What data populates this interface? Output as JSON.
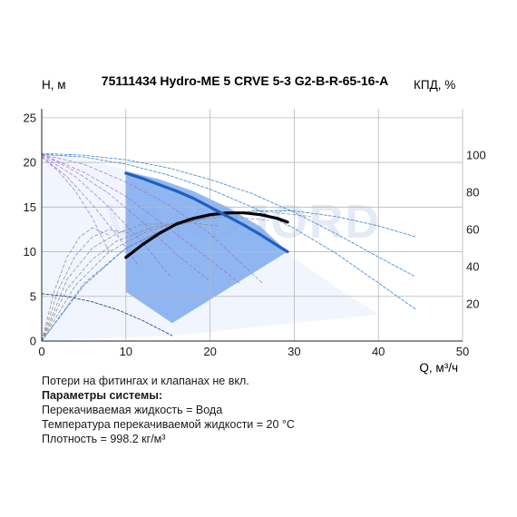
{
  "chart_data": {
    "type": "line",
    "title": "75111434 Hydro-ME 5 CRVE 5-3 G2-B-R-65-16-A",
    "ylabel": "H, м",
    "y2label": "КПД, %",
    "xlabel": "Q, м³/ч",
    "watermark": "VANDJORD",
    "xlim": [
      0,
      50
    ],
    "ylim": [
      0,
      26
    ],
    "y2lim": [
      0,
      125
    ],
    "grid": true,
    "x_ticks": [
      "0",
      "10",
      "20",
      "30",
      "40",
      "50"
    ],
    "y_ticks": [
      "0",
      "5",
      "10",
      "15",
      "20",
      "25"
    ],
    "y2_ticks": [
      "20",
      "40",
      "60",
      "80",
      "100"
    ],
    "colors": {
      "duty_head": "#1f5fbf",
      "duty_eff": "#000000",
      "operating_area": "#6fa0ec",
      "system_area": "#e7eefb",
      "head_curves": "#a16ad6",
      "eff_curves": "#8a8a8a",
      "envelope": "#4a8fd6"
    },
    "series": [
      {
        "name": "",
        "role": "duty_head",
        "axis": "H",
        "x": [
          10,
          12,
          14,
          16,
          18,
          20,
          22,
          24,
          26,
          28,
          29.2
        ],
        "y": [
          18.8,
          18.2,
          17.5,
          16.8,
          16.0,
          15.0,
          14.0,
          13.0,
          11.9,
          10.7,
          10.0
        ]
      },
      {
        "name": "",
        "role": "duty_efficiency",
        "axis": "eta",
        "x": [
          10,
          12,
          14,
          16,
          18,
          20,
          22,
          24,
          26,
          28,
          29.2
        ],
        "y": [
          45,
          52,
          58,
          63,
          66,
          68,
          69,
          69,
          68,
          66,
          64
        ]
      },
      {
        "name": "",
        "role": "max_head",
        "axis": "H",
        "x": [
          0,
          5,
          10,
          15,
          20,
          25,
          30,
          35,
          40,
          44.5
        ],
        "y": [
          20.9,
          20.6,
          19.8,
          18.6,
          17.0,
          15.0,
          12.6,
          9.8,
          6.5,
          3.5
        ]
      },
      {
        "name": "",
        "role": "max_head_upper",
        "axis": "H",
        "x": [
          0,
          5,
          10,
          15,
          20,
          25,
          30,
          35,
          40,
          44.2
        ],
        "y": [
          21.0,
          20.8,
          20.3,
          19.4,
          18.1,
          16.5,
          14.4,
          12.0,
          9.4,
          7.3
        ]
      },
      {
        "name": "",
        "role": "max_efficiency",
        "axis": "eta",
        "x": [
          0,
          5,
          10,
          15,
          20,
          25,
          30,
          35,
          40,
          44.5
        ],
        "y": [
          0,
          30,
          50,
          61,
          67,
          70,
          70,
          67,
          62,
          56
        ]
      },
      {
        "name": "",
        "role": "min_head",
        "axis": "H",
        "x": [
          0,
          3,
          6,
          9,
          12,
          15.5
        ],
        "y": [
          5.3,
          5.0,
          4.4,
          3.5,
          2.3,
          0.6
        ]
      }
    ],
    "head_family": [
      {
        "x": [
          0,
          5,
          10,
          15,
          20,
          26.2
        ],
        "y": [
          20.9,
          19.8,
          17.8,
          15.3,
          12.0,
          6.5
        ]
      },
      {
        "x": [
          0,
          5,
          10,
          15,
          19,
          23.5
        ],
        "y": [
          20.9,
          18.9,
          16.2,
          12.7,
          9.8,
          6.5
        ]
      },
      {
        "x": [
          0,
          4,
          8,
          12,
          16,
          20
        ],
        "y": [
          20.9,
          19.0,
          16.5,
          13.3,
          9.7,
          6.7
        ]
      },
      {
        "x": [
          0,
          4,
          8,
          12,
          15.2
        ],
        "y": [
          20.8,
          18.4,
          15.0,
          11.0,
          7.3
        ]
      },
      {
        "x": [
          0,
          3,
          6,
          9,
          11.5
        ],
        "y": [
          20.7,
          18.4,
          15.3,
          11.8,
          8.4
        ]
      },
      {
        "x": [
          0,
          2,
          4,
          6,
          8
        ],
        "y": [
          20.6,
          19.0,
          16.8,
          13.8,
          10.0
        ]
      }
    ],
    "efficiency_family": [
      {
        "x": [
          0,
          5,
          10,
          15,
          20,
          26,
          32
        ],
        "y": [
          0,
          31,
          50,
          61,
          67,
          70,
          67
        ]
      },
      {
        "x": [
          0,
          4,
          8,
          12,
          16,
          22,
          27
        ],
        "y": [
          0,
          30,
          48,
          58,
          64,
          67,
          65
        ]
      },
      {
        "x": [
          0,
          3,
          6,
          9,
          13,
          17,
          21
        ],
        "y": [
          0,
          28,
          44,
          54,
          61,
          64,
          62
        ]
      },
      {
        "x": [
          0,
          3,
          6,
          9,
          12,
          15.5
        ],
        "y": [
          0,
          33,
          50,
          58,
          63,
          63
        ]
      },
      {
        "x": [
          0,
          2,
          4,
          6,
          8,
          10.5
        ],
        "y": [
          0,
          28,
          46,
          56,
          60,
          58
        ]
      },
      {
        "x": [
          0,
          1.5,
          3,
          4.5,
          6,
          8
        ],
        "y": [
          0,
          27,
          45,
          56,
          61,
          57
        ]
      }
    ],
    "operating_area": {
      "H_polygon": [
        [
          10,
          19.0
        ],
        [
          14,
          18.1
        ],
        [
          18,
          16.8
        ],
        [
          22,
          15.0
        ],
        [
          26,
          12.8
        ],
        [
          29.2,
          10.0
        ],
        [
          15.5,
          2.0
        ],
        [
          10,
          5.5
        ]
      ]
    },
    "system_area": {
      "H_polygon": [
        [
          0,
          20.9
        ],
        [
          5,
          20.4
        ],
        [
          10,
          19.2
        ],
        [
          15,
          17.5
        ],
        [
          20,
          15.3
        ],
        [
          25,
          12.6
        ],
        [
          30,
          9.3
        ],
        [
          35,
          6.0
        ],
        [
          40,
          3.0
        ],
        [
          15.5,
          0.6
        ],
        [
          0,
          0
        ]
      ]
    }
  },
  "notes": {
    "line1": "Потери на фитингах и клапанах не вкл.",
    "heading": "Параметры системы:",
    "line3": "Перекачиваемая жидкость = Вода",
    "line4": "Температура перекачиваемой жидкости = 20 °C",
    "line5": "Плотность = 998.2 кг/м³"
  }
}
